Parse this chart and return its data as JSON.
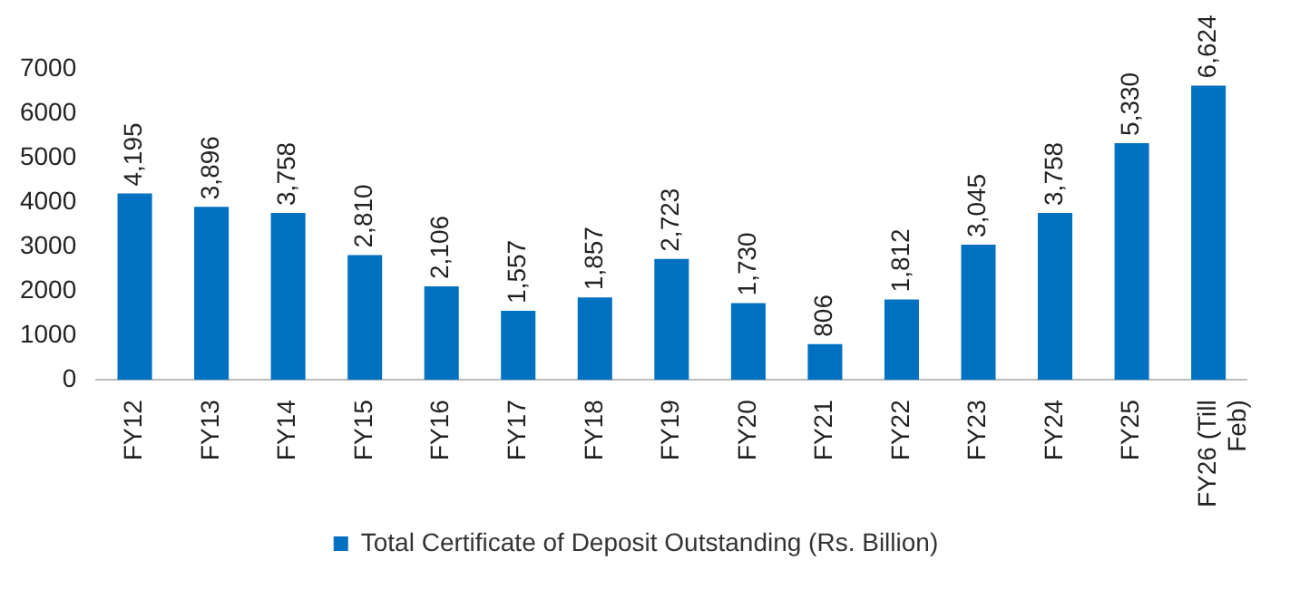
{
  "chart_data": {
    "type": "bar",
    "categories": [
      "FY12",
      "FY13",
      "FY14",
      "FY15",
      "FY16",
      "FY17",
      "FY18",
      "FY19",
      "FY20",
      "FY21",
      "FY22",
      "FY23",
      "FY24",
      "FY25",
      "FY26 (Till Feb)"
    ],
    "series": [
      {
        "name": "Total Certificate of Deposit Outstanding (Rs. Billion)",
        "color": "#0070c0",
        "values": [
          4195,
          3896,
          3758,
          2810,
          2106,
          1557,
          1857,
          2723,
          1730,
          806,
          1812,
          3045,
          3758,
          5330,
          6624
        ],
        "value_labels": [
          "4,195",
          "3,896",
          "3,758",
          "2,810",
          "2,106",
          "1,557",
          "1,857",
          "2,723",
          "1,730",
          "806",
          "1,812",
          "3,045",
          "3,758",
          "5,330",
          "6,624"
        ]
      }
    ],
    "ylim": [
      0,
      7000
    ],
    "yticks": [
      0,
      1000,
      2000,
      3000,
      4000,
      5000,
      6000,
      7000
    ],
    "grid": false,
    "legend": "bottom"
  }
}
